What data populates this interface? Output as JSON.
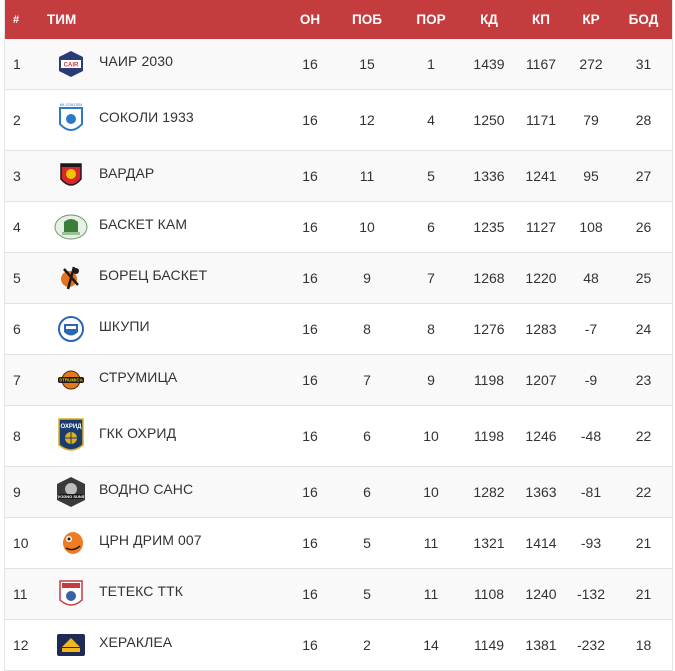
{
  "header": {
    "pos": "#",
    "team": "ТИМ",
    "on": "ОН",
    "pob": "ПОБ",
    "por": "ПОР",
    "kd": "КД",
    "kp": "КП",
    "kr": "КР",
    "bod": "БОД"
  },
  "colors": {
    "header_bg": "#c53c3f",
    "header_text": "#ffffff",
    "row_text": "#333333"
  },
  "rows": [
    {
      "pos": "1",
      "team": "ЧАИР 2030",
      "on": "16",
      "pob": "15",
      "por": "1",
      "kd": "1439",
      "kp": "1167",
      "kr": "272",
      "bod": "31",
      "logo": "chair-logo"
    },
    {
      "pos": "2",
      "team": "СОКОЛИ 1933",
      "on": "16",
      "pob": "12",
      "por": "4",
      "kd": "1250",
      "kp": "1171",
      "kr": "79",
      "bod": "28",
      "logo": "sokoli-logo"
    },
    {
      "pos": "3",
      "team": "ВАРДАР",
      "on": "16",
      "pob": "11",
      "por": "5",
      "kd": "1336",
      "kp": "1241",
      "kr": "95",
      "bod": "27",
      "logo": "vardar-logo"
    },
    {
      "pos": "4",
      "team": "БАСКЕТ КАМ",
      "on": "16",
      "pob": "10",
      "por": "6",
      "kd": "1235",
      "kp": "1127",
      "kr": "108",
      "bod": "26",
      "logo": "basket-kam-logo"
    },
    {
      "pos": "5",
      "team": "БОРЕЦ БАСКЕТ",
      "on": "16",
      "pob": "9",
      "por": "7",
      "kd": "1268",
      "kp": "1220",
      "kr": "48",
      "bod": "25",
      "logo": "borec-logo"
    },
    {
      "pos": "6",
      "team": "ШКУПИ",
      "on": "16",
      "pob": "8",
      "por": "8",
      "kd": "1276",
      "kp": "1283",
      "kr": "-7",
      "bod": "24",
      "logo": "shkupi-logo"
    },
    {
      "pos": "7",
      "team": "СТРУМИЦА",
      "on": "16",
      "pob": "7",
      "por": "9",
      "kd": "1198",
      "kp": "1207",
      "kr": "-9",
      "bod": "23",
      "logo": "strumica-logo"
    },
    {
      "pos": "8",
      "team": "ГКК ОХРИД",
      "on": "16",
      "pob": "6",
      "por": "10",
      "kd": "1198",
      "kp": "1246",
      "kr": "-48",
      "bod": "22",
      "logo": "ohrid-logo"
    },
    {
      "pos": "9",
      "team": "ВОДНО САНС",
      "on": "16",
      "pob": "6",
      "por": "10",
      "kd": "1282",
      "kp": "1363",
      "kr": "-81",
      "bod": "22",
      "logo": "vodno-logo"
    },
    {
      "pos": "10",
      "team": "ЦРН ДРИМ 007",
      "on": "16",
      "pob": "5",
      "por": "11",
      "kd": "1321",
      "kp": "1414",
      "kr": "-93",
      "bod": "21",
      "logo": "crn-drim-logo"
    },
    {
      "pos": "11",
      "team": "ТЕТЕКС ТТК",
      "on": "16",
      "pob": "5",
      "por": "11",
      "kd": "1108",
      "kp": "1240",
      "kr": "-132",
      "bod": "21",
      "logo": "teteks-logo"
    },
    {
      "pos": "12",
      "team": "ХЕРАКЛЕА",
      "on": "16",
      "pob": "2",
      "por": "14",
      "kd": "1149",
      "kp": "1381",
      "kr": "-232",
      "bod": "18",
      "logo": "herakleа-logo"
    }
  ]
}
